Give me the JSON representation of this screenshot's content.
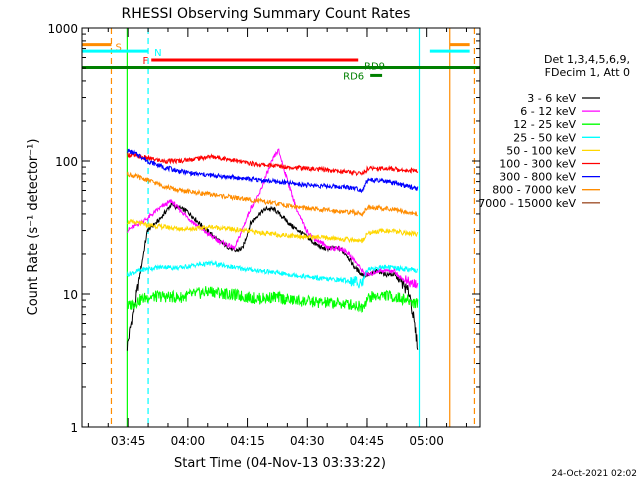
{
  "chart_data": {
    "type": "line",
    "title": "RHESSI Observing Summary Count Rates",
    "xlabel": "Start Time (04-Nov-13 03:33:22)",
    "ylabel": "Count Rate (s⁻¹ detector⁻¹)",
    "x_unit": "minutes after 03:33:22 UT",
    "xlim": [
      0,
      100
    ],
    "ylim": [
      1,
      1000
    ],
    "yscale": "log",
    "x_tick_labels": [
      {
        "x": 11.6,
        "label": "03:45"
      },
      {
        "x": 26.6,
        "label": "04:00"
      },
      {
        "x": 41.6,
        "label": "04:15"
      },
      {
        "x": 56.6,
        "label": "04:30"
      },
      {
        "x": 71.6,
        "label": "04:45"
      },
      {
        "x": 86.6,
        "label": "05:00"
      }
    ],
    "y_tick_labels": [
      {
        "y": 1,
        "label": "1"
      },
      {
        "y": 10,
        "label": "10"
      },
      {
        "y": 100,
        "label": "100"
      },
      {
        "y": 1000,
        "label": "1000"
      }
    ],
    "legend_title": [
      "Det 1,3,4,5,6,9,",
      "FDecim 1, Att 0"
    ],
    "legend_position": "right",
    "series": [
      {
        "name": "3 - 6 keV",
        "color": "#000000",
        "x": [
          11.4,
          16.4,
          19.4,
          22.4,
          26.4,
          30.4,
          34.4,
          38.4,
          40.4,
          42.4,
          44.4,
          46.4,
          48.4,
          50.4,
          52.4,
          54.4,
          56.4,
          58.4,
          60.4,
          62.4,
          64.4,
          66.4,
          68.4,
          70.4,
          71.4,
          72.4,
          74.4,
          76.4,
          78.4,
          80.4,
          82.4,
          84.4
        ],
        "y": [
          4,
          30,
          36,
          47,
          42,
          32,
          25,
          21,
          22,
          34,
          40,
          44,
          43,
          38,
          33,
          30,
          27,
          24,
          22,
          22,
          22,
          20,
          16,
          14,
          14,
          14,
          15,
          14,
          14,
          12,
          10,
          4
        ]
      },
      {
        "name": "6 - 12 keV",
        "color": "#ff00ff",
        "x": [
          11.4,
          14.4,
          16.4,
          19.4,
          22.4,
          26.4,
          30.4,
          34.4,
          38.4,
          42.4,
          44.4,
          46.4,
          48.4,
          49.4,
          50.4,
          52.4,
          54.4,
          56.4,
          58.4,
          60.4,
          62.4,
          64.4,
          66.4,
          68.4,
          70.4,
          71.4,
          72.4,
          74.4,
          76.4,
          78.4,
          80.4,
          82.4,
          84.4
        ],
        "y": [
          30,
          34,
          37,
          44,
          50,
          38,
          30,
          25,
          22,
          44,
          55,
          80,
          110,
          120,
          95,
          60,
          40,
          30,
          26,
          24,
          22,
          22,
          21,
          18,
          15,
          14,
          14,
          15,
          15,
          15,
          13,
          12,
          12
        ]
      },
      {
        "name": "12 - 25 keV",
        "color": "#00ff00",
        "x": [
          11.4,
          14.4,
          16.4,
          20.4,
          24.4,
          28.4,
          32.4,
          36.4,
          40.4,
          44.4,
          48.4,
          52.4,
          56.4,
          60.4,
          64.4,
          68.4,
          70.4,
          71.4,
          72.4,
          76.4,
          80.4,
          84.4
        ],
        "y": [
          8,
          9,
          9.5,
          9.6,
          9.4,
          10,
          10.5,
          10,
          9.6,
          9.2,
          9.5,
          9,
          8.8,
          8.6,
          8.5,
          8.3,
          8,
          9,
          9.5,
          9.8,
          9.2,
          8.5
        ]
      },
      {
        "name": "25 - 50 keV",
        "color": "#00ffff",
        "x": [
          11.4,
          14.4,
          16.4,
          20.4,
          24.4,
          28.4,
          32.4,
          36.4,
          40.4,
          44.4,
          48.4,
          52.4,
          56.4,
          60.4,
          64.4,
          68.4,
          70.4,
          71.4,
          72.4,
          76.4,
          80.4,
          84.4
        ],
        "y": [
          14,
          15,
          15.5,
          16,
          15.7,
          16.5,
          17,
          16.2,
          15.5,
          15,
          14.5,
          14,
          13.5,
          13,
          12.8,
          12.5,
          12,
          15,
          15.5,
          16,
          15.5,
          15
        ]
      },
      {
        "name": "50 - 100 keV",
        "color": "#ffd700",
        "x": [
          11.4,
          14.4,
          16.4,
          20.4,
          24.4,
          28.4,
          32.4,
          36.4,
          40.4,
          44.4,
          48.4,
          52.4,
          56.4,
          60.4,
          64.4,
          68.4,
          70.4,
          71.4,
          72.4,
          76.4,
          80.4,
          84.4
        ],
        "y": [
          35,
          34,
          33,
          32,
          31,
          31,
          32,
          31,
          30,
          29,
          28,
          27.5,
          27,
          26.5,
          26,
          25.5,
          25,
          28,
          29,
          30,
          29,
          28
        ]
      },
      {
        "name": "100 - 300 keV",
        "color": "#ff0000",
        "x": [
          11.4,
          14.4,
          16.4,
          20.4,
          24.4,
          28.4,
          32.4,
          36.4,
          40.4,
          44.4,
          48.4,
          52.4,
          56.4,
          60.4,
          64.4,
          68.4,
          70.4,
          71.4,
          72.4,
          76.4,
          80.4,
          84.4
        ],
        "y": [
          112,
          108,
          105,
          100,
          100,
          104,
          108,
          104,
          98,
          94,
          92,
          90,
          88,
          86,
          84,
          82,
          80,
          86,
          88,
          88,
          86,
          84
        ]
      },
      {
        "name": "300 - 800 keV",
        "color": "#0000ff",
        "x": [
          11.4,
          14.4,
          16.4,
          20.4,
          24.4,
          28.4,
          32.4,
          36.4,
          40.4,
          44.4,
          48.4,
          52.4,
          56.4,
          60.4,
          64.4,
          68.4,
          70.4,
          71.4,
          72.4,
          76.4,
          80.4,
          84.4
        ],
        "y": [
          120,
          110,
          100,
          90,
          84,
          80,
          78,
          76,
          74,
          72,
          70,
          68,
          66,
          65,
          64,
          63,
          60,
          70,
          72,
          70,
          66,
          62
        ]
      },
      {
        "name": "800 - 7000 keV",
        "color": "#ff8c00",
        "x": [
          11.4,
          14.4,
          16.4,
          20.4,
          24.4,
          28.4,
          32.4,
          36.4,
          40.4,
          44.4,
          48.4,
          52.4,
          56.4,
          60.4,
          64.4,
          68.4,
          70.4,
          71.4,
          72.4,
          76.4,
          80.4,
          84.4
        ],
        "y": [
          80,
          75,
          72,
          65,
          60,
          58,
          56,
          54,
          52,
          50,
          48,
          46,
          44,
          43,
          42,
          41,
          40,
          44,
          45,
          44,
          42,
          40
        ]
      },
      {
        "name": "7000 - 15000 keV",
        "color": "#a0522d",
        "x": [],
        "y": []
      }
    ],
    "flag_bars": [
      {
        "label": "S",
        "color": "#ff8c00",
        "y": 750,
        "segments": [
          [
            0,
            7.4
          ],
          [
            92.4,
            97.4
          ]
        ]
      },
      {
        "label": "N",
        "color": "#00ffff",
        "y": 670,
        "segments": [
          [
            0,
            16.6
          ],
          [
            87.4,
            97.4
          ]
        ]
      },
      {
        "label": "F",
        "color": "#ff0000",
        "y": 575,
        "segments": [
          [
            17.4,
            69.4
          ]
        ]
      },
      {
        "label": "RD9",
        "color": "#008000",
        "y": 505,
        "segments": [
          [
            0,
            100
          ]
        ]
      },
      {
        "label": "RD6",
        "color": "#008000",
        "y": 440,
        "segments": [
          [
            72.4,
            75.4
          ]
        ]
      }
    ],
    "vertical_markers": [
      {
        "x": 7.4,
        "color": "#ff8c00",
        "style": "dashed"
      },
      {
        "x": 11.4,
        "color": "#00ff00",
        "style": "solid"
      },
      {
        "x": 16.6,
        "color": "#00ffff",
        "style": "dashed"
      },
      {
        "x": 84.8,
        "color": "#00ffff",
        "style": "solid"
      },
      {
        "x": 92.4,
        "color": "#ff8c00",
        "style": "solid"
      },
      {
        "x": 98.6,
        "color": "#ff8c00",
        "style": "dashed"
      }
    ],
    "timestamp": "24-Oct-2021 02:02"
  }
}
